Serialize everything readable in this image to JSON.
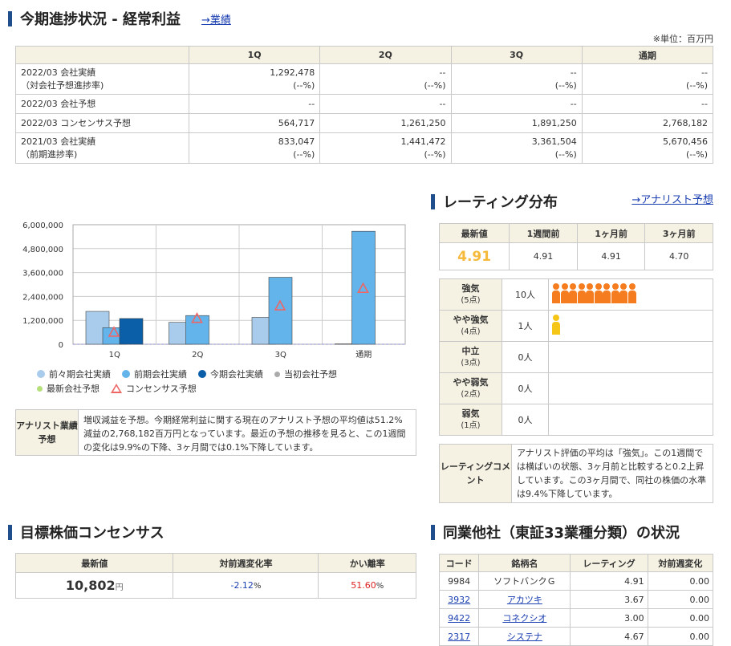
{
  "progress": {
    "title": "今期進捗状況 - 経常利益",
    "link": "→業績",
    "unit": "※単位：百万円",
    "headers": [
      "",
      "1Q",
      "2Q",
      "3Q",
      "通期"
    ],
    "rows": [
      {
        "label": "2022/03 会社実績",
        "sub": "（対会社予想進捗率)",
        "cells": [
          [
            "1,292,478",
            "(--%)"
          ],
          [
            "--",
            "(--%)"
          ],
          [
            "--",
            "(--%)"
          ],
          [
            "--",
            "(--%)"
          ]
        ]
      },
      {
        "label": "2022/03 会社予想",
        "sub": "",
        "cells": [
          [
            "--",
            ""
          ],
          [
            "--",
            ""
          ],
          [
            "--",
            ""
          ],
          [
            "--",
            ""
          ]
        ]
      },
      {
        "label": "2022/03 コンセンサス予想",
        "sub": "",
        "cells": [
          [
            "564,717",
            ""
          ],
          [
            "1,261,250",
            ""
          ],
          [
            "1,891,250",
            ""
          ],
          [
            "2,768,182",
            ""
          ]
        ]
      },
      {
        "label": "2021/03 会社実績",
        "sub": "（前期進捗率)",
        "cells": [
          [
            "833,047",
            "(--%)"
          ],
          [
            "1,441,472",
            "(--%)"
          ],
          [
            "3,361,504",
            "(--%)"
          ],
          [
            "5,670,456",
            "(--%)"
          ]
        ]
      }
    ]
  },
  "chart_data": {
    "type": "bar",
    "categories": [
      "1Q",
      "2Q",
      "3Q",
      "通期"
    ],
    "ylim": [
      0,
      6000000
    ],
    "yticks": [
      "6,000,000",
      "4,800,000",
      "3,600,000",
      "2,400,000",
      "1,200,000",
      "0"
    ],
    "series": [
      {
        "name": "前々期会社実績",
        "color": "#a9ccec",
        "values": [
          1650000,
          1100000,
          1350000,
          20000
        ]
      },
      {
        "name": "前期会社実績",
        "color": "#62b4ea",
        "values": [
          833047,
          1441472,
          3361504,
          5670456
        ]
      },
      {
        "name": "今期会社実績",
        "color": "#0a5fa8",
        "values": [
          1292478,
          null,
          null,
          null
        ]
      }
    ],
    "consensus": {
      "name": "コンセンサス予想",
      "values": [
        564717,
        1261250,
        1891250,
        2768182
      ]
    },
    "legend_extra": [
      {
        "name": "当初会社予想",
        "color": "#aaaaaa"
      },
      {
        "name": "最新会社予想",
        "color": "#b6e07a"
      }
    ]
  },
  "analyst": {
    "header": "アナリスト業績予想",
    "text": "増収減益を予想。今期経常利益に関する現在のアナリスト予想の平均値は51.2%減益の2,768,182百万円となっています。最近の予想の推移を見ると、この1週間の変化は9.9%の下降、3ヶ月間では0.1%下降しています。"
  },
  "rating": {
    "title": "レーティング分布",
    "link": "→アナリスト予想",
    "headers": [
      "最新値",
      "1週間前",
      "1ヶ月前",
      "3ヶ月前"
    ],
    "values": [
      "4.91",
      "4.91",
      "4.91",
      "4.70"
    ],
    "rows": [
      {
        "label": "強気",
        "pts": "(5点)",
        "count": "10人",
        "n": 10,
        "color": "#f57c1f"
      },
      {
        "label": "やや強気",
        "pts": "(4点)",
        "count": "1人",
        "n": 1,
        "color": "#f5c518"
      },
      {
        "label": "中立",
        "pts": "(3点)",
        "count": "0人",
        "n": 0,
        "color": "#999999"
      },
      {
        "label": "やや弱気",
        "pts": "(2点)",
        "count": "0人",
        "n": 0,
        "color": "#999999"
      },
      {
        "label": "弱気",
        "pts": "(1点)",
        "count": "0人",
        "n": 0,
        "color": "#999999"
      }
    ],
    "comment_header": "レーティングコメント",
    "comment": "アナリスト評価の平均は「強気」。この1週間では横ばいの状態、3ヶ月前と比較すると0.2上昇しています。この3ヶ月間で、同社の株価の水準は9.4%下降しています。",
    "accent": "#f5b93b"
  },
  "target": {
    "title": "目標株価コンセンサス",
    "headers": [
      "最新値",
      "対前週変化率",
      "かい離率"
    ],
    "latest": "10,802",
    "latest_unit": "円",
    "change": "-2.12",
    "change_unit": "%",
    "deviation": "51.60",
    "deviation_unit": "%"
  },
  "peers": {
    "title": "同業他社（東証33業種分類）の状況",
    "headers": [
      "コード",
      "銘柄名",
      "レーティング",
      "対前週変化"
    ],
    "rows": [
      {
        "code": "9984",
        "name": "ソフトバンクＧ",
        "rating": "4.91",
        "change": "0.00",
        "link": false
      },
      {
        "code": "3932",
        "name": "アカツキ",
        "rating": "3.67",
        "change": "0.00",
        "link": true
      },
      {
        "code": "9422",
        "name": "コネクシオ",
        "rating": "3.00",
        "change": "0.00",
        "link": true
      },
      {
        "code": "2317",
        "name": "システナ",
        "rating": "4.67",
        "change": "0.00",
        "link": true
      }
    ]
  }
}
